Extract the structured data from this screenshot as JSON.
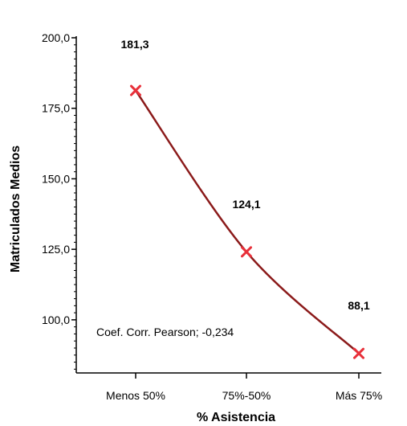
{
  "chart_data": {
    "type": "line",
    "title": "",
    "xlabel": "% Asistencia",
    "ylabel": "Matriculados Medios",
    "categories": [
      "Menos 50%",
      "75%-50%",
      "Más 75%"
    ],
    "series": [
      {
        "values": [
          181.3,
          124.1,
          88.1
        ],
        "labels": [
          "181,3",
          "124,1",
          "88,1"
        ]
      }
    ],
    "ylim": [
      80,
      200
    ],
    "yticks": [
      {
        "value": 100,
        "label": "100,0"
      },
      {
        "value": 125,
        "label": "125,0"
      },
      {
        "value": 150,
        "label": "150,0"
      },
      {
        "value": 175,
        "label": "175,0"
      },
      {
        "value": 200,
        "label": "200,0"
      }
    ],
    "annotation": "Coef. Corr. Pearson; -0,234",
    "grid": false,
    "line_color": "#8b1a1a",
    "marker_color": "#e8303a",
    "marker": "x"
  }
}
